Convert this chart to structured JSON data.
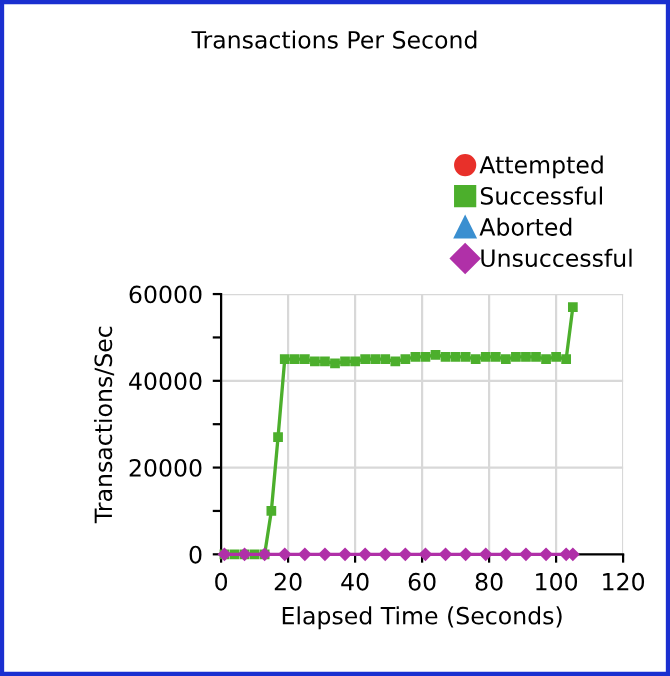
{
  "chart_data": {
    "type": "line",
    "title": "Transactions Per Second",
    "xlabel": "Elapsed Time (Seconds)",
    "ylabel": "Transactions/Sec",
    "x": [
      1,
      4,
      7,
      10,
      13,
      15,
      17,
      19,
      22,
      25,
      28,
      31,
      34,
      37,
      40,
      43,
      46,
      49,
      52,
      55,
      58,
      61,
      64,
      67,
      70,
      73,
      76,
      79,
      82,
      85,
      88,
      91,
      94,
      97,
      100,
      103,
      105
    ],
    "series": [
      {
        "name": "Attempted",
        "color": "#e8302a",
        "marker": "circle",
        "values": [
          null,
          null,
          null,
          null,
          null,
          null,
          null,
          null,
          null,
          null,
          null,
          null,
          null,
          null,
          null,
          null,
          null,
          null,
          null,
          null,
          null,
          null,
          null,
          null,
          null,
          null,
          null,
          null,
          null,
          null,
          null,
          null,
          null,
          null,
          null,
          null,
          null
        ]
      },
      {
        "name": "Successful",
        "color": "#4caf2c",
        "marker": "square",
        "values": [
          0,
          0,
          0,
          0,
          0,
          10000,
          27000,
          45000,
          45000,
          45000,
          44500,
          44500,
          44000,
          44500,
          44500,
          45000,
          45000,
          45000,
          44500,
          45000,
          45500,
          45500,
          46000,
          45500,
          45500,
          45500,
          45000,
          45500,
          45500,
          45000,
          45500,
          45500,
          45500,
          45000,
          45500,
          45000,
          57000
        ]
      },
      {
        "name": "Aborted",
        "color": "#3a8fd0",
        "marker": "triangle",
        "values": [
          null,
          null,
          null,
          null,
          null,
          null,
          null,
          null,
          null,
          null,
          null,
          null,
          null,
          null,
          null,
          null,
          null,
          null,
          null,
          null,
          null,
          null,
          null,
          null,
          null,
          null,
          null,
          null,
          null,
          null,
          null,
          null,
          null,
          null,
          null,
          null,
          null
        ]
      },
      {
        "name": "Unsuccessful",
        "color": "#b030a8",
        "marker": "diamond",
        "x": [
          1,
          7,
          13,
          19,
          25,
          31,
          37,
          43,
          49,
          55,
          61,
          67,
          73,
          79,
          85,
          91,
          97,
          103,
          105
        ],
        "values": [
          0,
          0,
          0,
          0,
          0,
          0,
          0,
          0,
          0,
          0,
          0,
          0,
          0,
          0,
          0,
          0,
          0,
          0,
          0
        ]
      }
    ],
    "xlim": [
      0,
      120
    ],
    "xticks": [
      0,
      20,
      40,
      60,
      80,
      100,
      120
    ],
    "ylim": [
      0,
      60000
    ],
    "yticks": [
      0,
      {
        "value": 10000,
        "label": null
      },
      20000,
      {
        "value": 30000,
        "label": null
      },
      40000,
      {
        "value": 50000,
        "label": null
      },
      60000
    ],
    "grid": true,
    "legend": "top right"
  }
}
